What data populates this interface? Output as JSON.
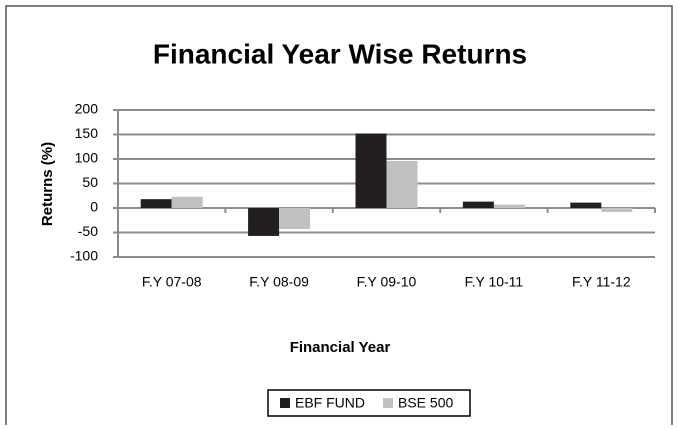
{
  "chart_data": {
    "type": "bar",
    "title": "Financial Year Wise Returns",
    "xlabel": "Financial Year",
    "ylabel": "Returns (%)",
    "categories": [
      "F.Y 07-08",
      "F.Y 08-09",
      "F.Y 09-10",
      "F.Y 10-11",
      "F.Y 11-12"
    ],
    "series": [
      {
        "name": "EBF FUND",
        "color": "#231f20",
        "values": [
          18,
          -57,
          152,
          13,
          11
        ]
      },
      {
        "name": "BSE 500",
        "color": "#c0c0c0",
        "values": [
          23,
          -43,
          96,
          7,
          -8
        ]
      }
    ],
    "ylim": [
      -100,
      200
    ],
    "yticks": [
      -100,
      -50,
      0,
      50,
      100,
      150,
      200
    ],
    "grid": true,
    "legend": "bottom"
  }
}
